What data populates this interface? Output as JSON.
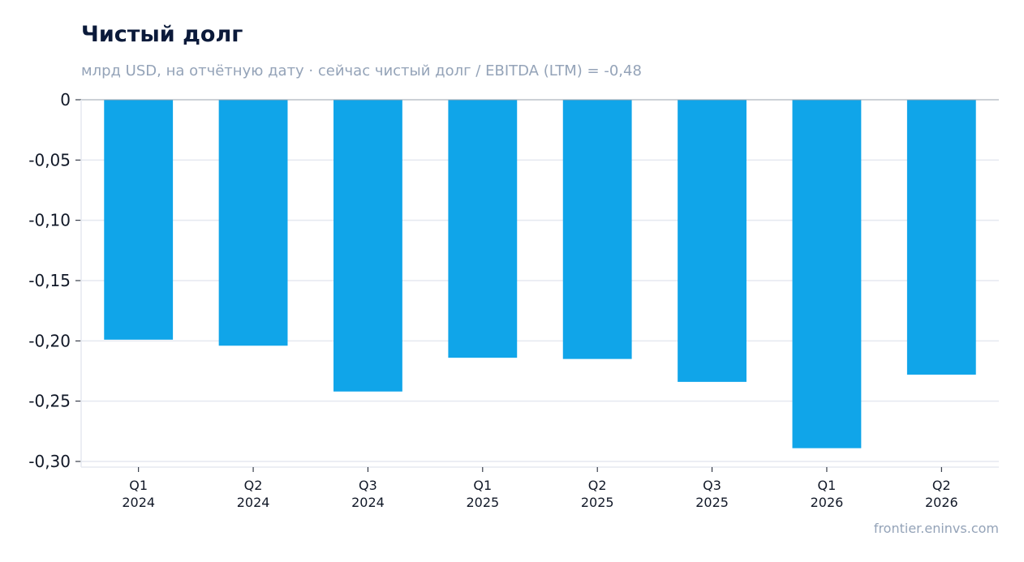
{
  "chart_data": {
    "type": "bar",
    "title": "Чистый долг",
    "subtitle": "млрд USD, на отчётную дату · сейчас чистый долг / EBITDA (LTM) = -0,48",
    "categories": [
      [
        "Q1",
        "2024"
      ],
      [
        "Q2",
        "2024"
      ],
      [
        "Q3",
        "2024"
      ],
      [
        "Q1",
        "2025"
      ],
      [
        "Q2",
        "2025"
      ],
      [
        "Q3",
        "2025"
      ],
      [
        "Q1",
        "2026"
      ],
      [
        "Q2",
        "2026"
      ]
    ],
    "values": [
      -0.199,
      -0.204,
      -0.242,
      -0.214,
      -0.215,
      -0.234,
      -0.289,
      -0.228
    ],
    "yticks": [
      0,
      -0.05,
      -0.1,
      -0.15,
      -0.2,
      -0.25,
      -0.3
    ],
    "ytick_labels": [
      "0",
      "-0,05",
      "-0,10",
      "-0,15",
      "-0,20",
      "-0,25",
      "-0,30"
    ],
    "ylim": [
      -0.3,
      0
    ],
    "grid": true,
    "bar_color": "#10a5e9",
    "grid_color": "#e5e9f0"
  },
  "footer": {
    "source": "frontier.eninvs.com"
  }
}
